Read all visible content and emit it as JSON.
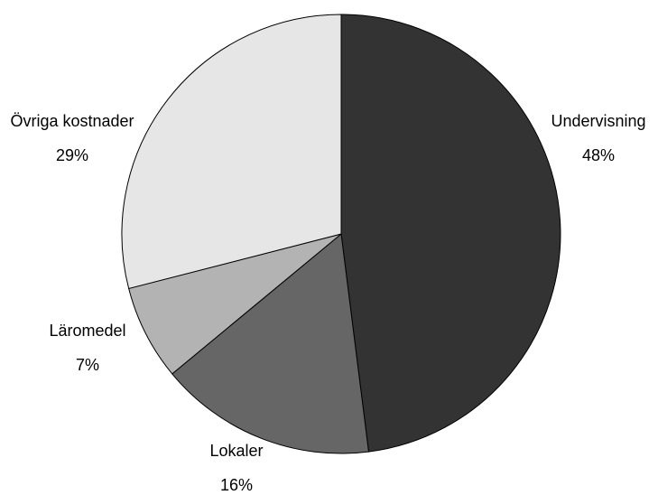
{
  "chart_data": {
    "type": "pie",
    "categories": [
      "Undervisning",
      "Lokaler",
      "Läromedel",
      "Övriga kostnader"
    ],
    "values": [
      48,
      16,
      7,
      29
    ],
    "data_labels": [
      "48%",
      "16%",
      "7%",
      "29%"
    ],
    "colors": [
      "#333333",
      "#666666",
      "#b3b3b3",
      "#e6e6e6"
    ],
    "title": "",
    "legend": "none",
    "start_angle": "12 o'clock",
    "direction": "clockwise"
  }
}
